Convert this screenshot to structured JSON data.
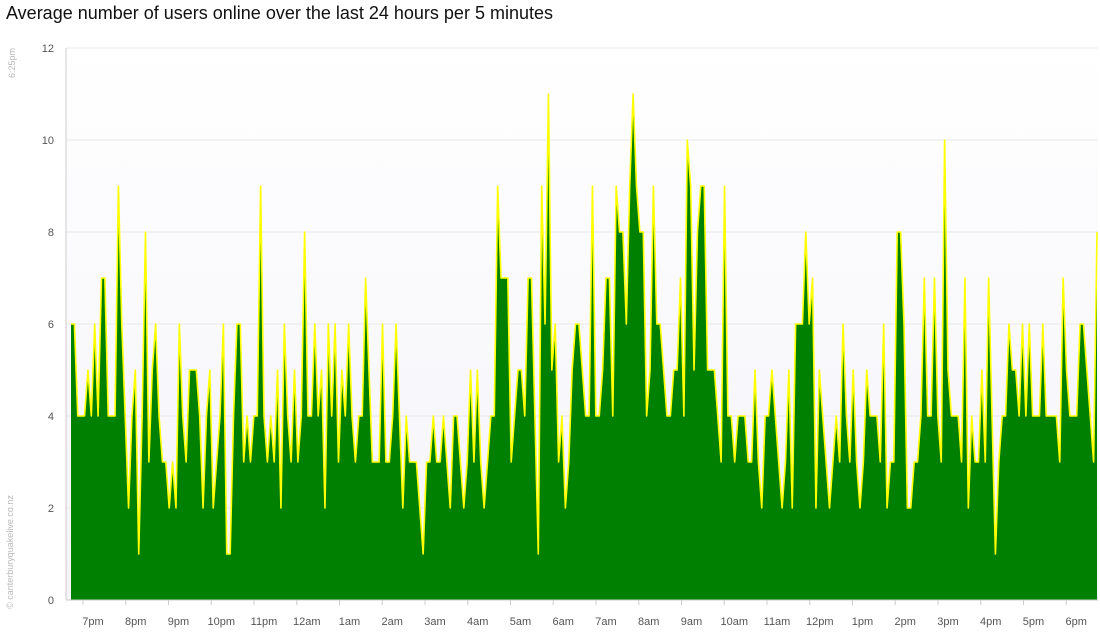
{
  "side_text": {
    "time": "6:25pm",
    "credit": "© canterburyquakelive.co.nz"
  },
  "colors": {
    "area_fill": "#008000",
    "line": "#ffff00",
    "plot_background_top": "#ffffff",
    "plot_background_bottom": "#f4f4fa",
    "grid": "#e8e8e8"
  },
  "chart_data": {
    "type": "area",
    "title": "Average number of users online over the last 24 hours per 5 minutes",
    "xlabel": "",
    "ylabel": "",
    "ylim": [
      0,
      12
    ],
    "y_ticks": [
      0,
      2,
      4,
      6,
      8,
      10,
      12
    ],
    "x_ticks": [
      "7pm",
      "8pm",
      "9pm",
      "10pm",
      "11pm",
      "12am",
      "1am",
      "2am",
      "3am",
      "4am",
      "5am",
      "6am",
      "7am",
      "8am",
      "9am",
      "10am",
      "11am",
      "12pm",
      "1pm",
      "2pm",
      "3pm",
      "4pm",
      "5pm",
      "6pm"
    ],
    "grid": true,
    "legend": "none",
    "series": [
      {
        "values": [
          6,
          6,
          4,
          4,
          4,
          5,
          4,
          6,
          4,
          7,
          7,
          4,
          4,
          4,
          9,
          6,
          4,
          2,
          4,
          5,
          1,
          4,
          8,
          3,
          5,
          6,
          4,
          3,
          3,
          2,
          3,
          2,
          6,
          4,
          3,
          5,
          5,
          5,
          4,
          2,
          4,
          5,
          2,
          3,
          4,
          6,
          1,
          1,
          4,
          6,
          6,
          3,
          4,
          3,
          4,
          4,
          9,
          4,
          3,
          4,
          3,
          5,
          2,
          6,
          4,
          3,
          5,
          3,
          4,
          8,
          4,
          4,
          6,
          4,
          5,
          2,
          6,
          4,
          6,
          3,
          5,
          4,
          6,
          4,
          3,
          4,
          4,
          7,
          5,
          3,
          3,
          3,
          6,
          3,
          3,
          4,
          6,
          4,
          2,
          4,
          3,
          3,
          3,
          2,
          1,
          3,
          3,
          4,
          3,
          3,
          4,
          3,
          2,
          4,
          4,
          3,
          2,
          3,
          5,
          3,
          5,
          3,
          2,
          3,
          4,
          4,
          9,
          7,
          7,
          7,
          3,
          4,
          5,
          5,
          4,
          7,
          7,
          4,
          1,
          9,
          6,
          11,
          5,
          6,
          3,
          4,
          2,
          3,
          5,
          6,
          6,
          5,
          4,
          4,
          9,
          4,
          4,
          5,
          7,
          7,
          4,
          9,
          8,
          8,
          6,
          9,
          11,
          9,
          8,
          8,
          4,
          5,
          9,
          6,
          6,
          5,
          4,
          4,
          5,
          5,
          7,
          4,
          10,
          9,
          5,
          8,
          9,
          9,
          5,
          5,
          5,
          4,
          3,
          9,
          4,
          4,
          3,
          4,
          4,
          4,
          3,
          3,
          5,
          3,
          2,
          4,
          4,
          5,
          4,
          3,
          2,
          3,
          5,
          2,
          6,
          6,
          6,
          8,
          6,
          7,
          2,
          5,
          4,
          3,
          2,
          3,
          4,
          3,
          6,
          4,
          3,
          5,
          3,
          2,
          3,
          5,
          4,
          4,
          4,
          3,
          6,
          2,
          3,
          3,
          8,
          8,
          6,
          2,
          2,
          3,
          3,
          4,
          7,
          4,
          4,
          7,
          4,
          3,
          10,
          5,
          4,
          4,
          4,
          3,
          7,
          2,
          4,
          3,
          3,
          5,
          3,
          7,
          4,
          1,
          3,
          4,
          4,
          6,
          5,
          5,
          4,
          6,
          4,
          6,
          4,
          4,
          4,
          6,
          4,
          4,
          4,
          4,
          3,
          7,
          5,
          4,
          4,
          4,
          6,
          6,
          5,
          4,
          3,
          8
        ]
      }
    ]
  }
}
